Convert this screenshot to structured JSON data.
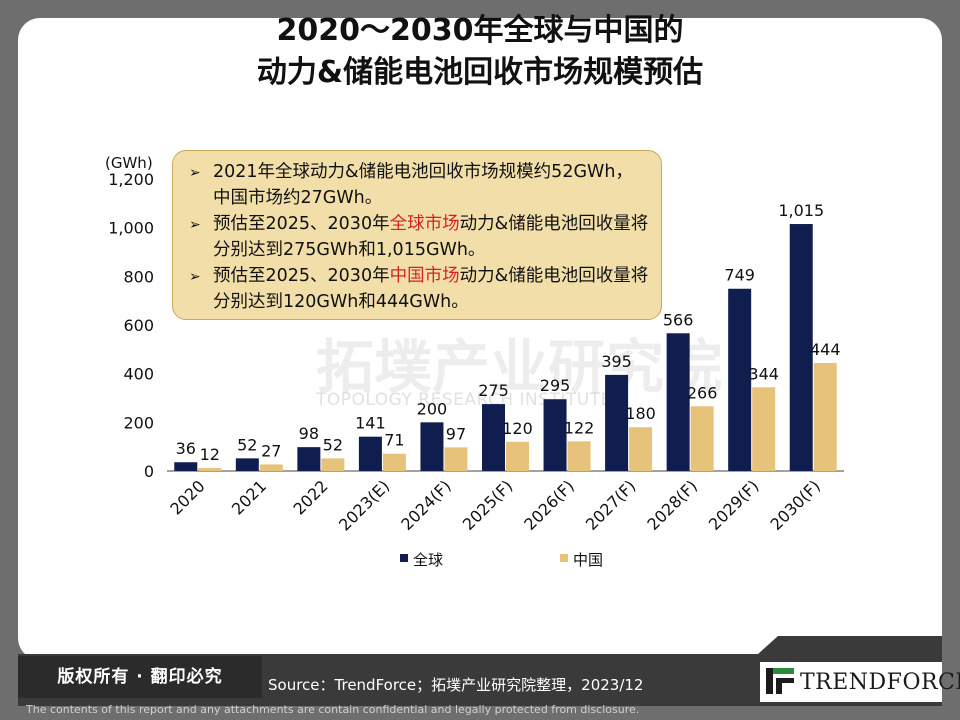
{
  "title": {
    "line1": "2020～2030年全球与中国的",
    "line2": "动力&储能电池回收市场规模预估"
  },
  "callout": {
    "bullets": [
      {
        "parts": [
          {
            "text": "2021年全球动力&储能电池回收市场规模约52GWh，中国市场约27GWh。",
            "red": false
          }
        ]
      },
      {
        "parts": [
          {
            "text": "预估至2025、2030年",
            "red": false
          },
          {
            "text": "全球市场",
            "red": true
          },
          {
            "text": "动力&储能电池回收量将分别达到275GWh和1,015GWh。",
            "red": false
          }
        ]
      },
      {
        "parts": [
          {
            "text": "预估至2025、2030年",
            "red": false
          },
          {
            "text": "中国市场",
            "red": true
          },
          {
            "text": "动力&储能电池回收量将分别达到120GWh和444GWh。",
            "red": false
          }
        ]
      }
    ]
  },
  "watermark": {
    "cn": "拓墣产业研究院",
    "en": "TOPOLOGY RESEARCH INSTITUTE"
  },
  "footer": {
    "rights": "版权所有 · 翻印必究",
    "source": "Source：TrendForce；拓墣产业研究院整理，2023/12",
    "disclaimer": "The contents of this report and any attachments are contain confidential and legally protected from disclosure.",
    "logo_text": "TRENDFORCE"
  },
  "chart_data": {
    "type": "bar",
    "unit_label": "(GWh)",
    "categories": [
      "2020",
      "2021",
      "2022",
      "2023(E)",
      "2024(F)",
      "2025(F)",
      "2026(F)",
      "2027(F)",
      "2028(F)",
      "2029(F)",
      "2030(F)"
    ],
    "series": [
      {
        "name": "全球",
        "color": "#0f1e4f",
        "values": [
          36,
          52,
          98,
          141,
          200,
          275,
          295,
          395,
          566,
          749,
          1015
        ],
        "labels": [
          "36",
          "52",
          "98",
          "141",
          "200",
          "275",
          "295",
          "395",
          "566",
          "749",
          "1,015"
        ]
      },
      {
        "name": "中国",
        "color": "#e6c27a",
        "values": [
          12,
          27,
          52,
          71,
          97,
          120,
          122,
          180,
          266,
          344,
          444
        ],
        "labels": [
          "12",
          "27",
          "52",
          "71",
          "97",
          "120",
          "122",
          "180",
          "266",
          "344",
          "444"
        ]
      }
    ],
    "yticks": [
      0,
      200,
      400,
      600,
      800,
      1000,
      1200
    ],
    "ytick_labels": [
      "0",
      "200",
      "400",
      "600",
      "800",
      "1,000",
      "1,200"
    ],
    "ylim": [
      0,
      1200
    ],
    "legend_position": "bottom",
    "grid": false
  }
}
